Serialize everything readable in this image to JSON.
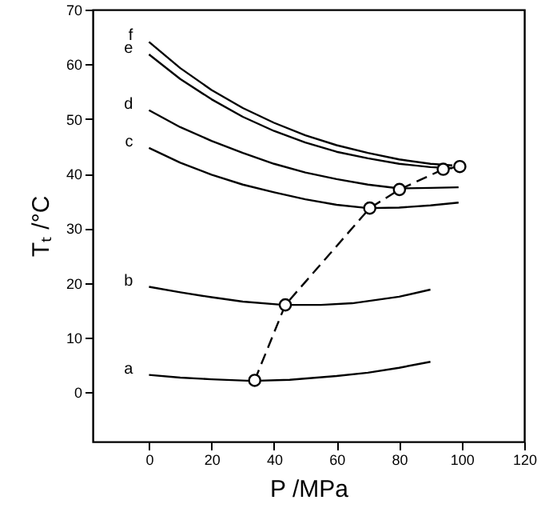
{
  "chart_data": {
    "type": "line",
    "xlabel": "P /MPa",
    "ylabel": "Tₜ /°C",
    "xlim": [
      -18,
      120
    ],
    "xticks": [
      0,
      20,
      40,
      60,
      80,
      100,
      120
    ],
    "ylim": [
      -9,
      70
    ],
    "yticks": [
      0,
      10,
      20,
      30,
      40,
      50,
      60,
      70
    ],
    "grid": false,
    "marker": "none",
    "series": [
      {
        "name": "a",
        "color": "#000000",
        "x": [
          0,
          10,
          20,
          33,
          45,
          60,
          70,
          80,
          90
        ],
        "values": [
          3.2,
          2.7,
          2.4,
          2.1,
          2.3,
          3,
          3.6,
          4.5,
          5.6
        ]
      },
      {
        "name": "b",
        "color": "#000000",
        "x": [
          0,
          10,
          20,
          30,
          43,
          55,
          65,
          80,
          90
        ],
        "values": [
          19.3,
          18.3,
          17.4,
          16.6,
          16,
          16,
          16.3,
          17.5,
          18.8
        ]
      },
      {
        "name": "c",
        "color": "#000000",
        "x": [
          0,
          10,
          20,
          30,
          40,
          50,
          60,
          70,
          80,
          90,
          99
        ],
        "values": [
          44.7,
          42,
          39.8,
          38,
          36.6,
          35.3,
          34.3,
          33.7,
          33.8,
          34.2,
          34.7
        ]
      },
      {
        "name": "d",
        "color": "#000000",
        "x": [
          0,
          10,
          20,
          30,
          40,
          50,
          60,
          70,
          80,
          90,
          99
        ],
        "values": [
          51.6,
          48.5,
          46,
          43.8,
          41.8,
          40.2,
          39,
          38,
          37.3,
          37.4,
          37.5
        ]
      },
      {
        "name": "e",
        "color": "#000000",
        "x": [
          0,
          10,
          20,
          30,
          40,
          50,
          60,
          70,
          80,
          90,
          97
        ],
        "values": [
          61.8,
          57.3,
          53.6,
          50.4,
          47.8,
          45.7,
          44,
          42.8,
          41.8,
          41.2,
          41
        ]
      },
      {
        "name": "f",
        "color": "#000000",
        "x": [
          0,
          10,
          20,
          30,
          40,
          50,
          60,
          70,
          80,
          90,
          97
        ],
        "values": [
          64.1,
          59.3,
          55.3,
          52,
          49.3,
          47,
          45.2,
          43.8,
          42.6,
          41.8,
          41.5
        ]
      },
      {
        "color": "#000000",
        "line_style": "dashed",
        "marker": "circle",
        "x": [
          33.8,
          43.6,
          70.6,
          80.1,
          94.1,
          99.4
        ],
        "values": [
          2.2,
          16,
          33.7,
          37.1,
          40.8,
          41.3
        ]
      }
    ]
  }
}
